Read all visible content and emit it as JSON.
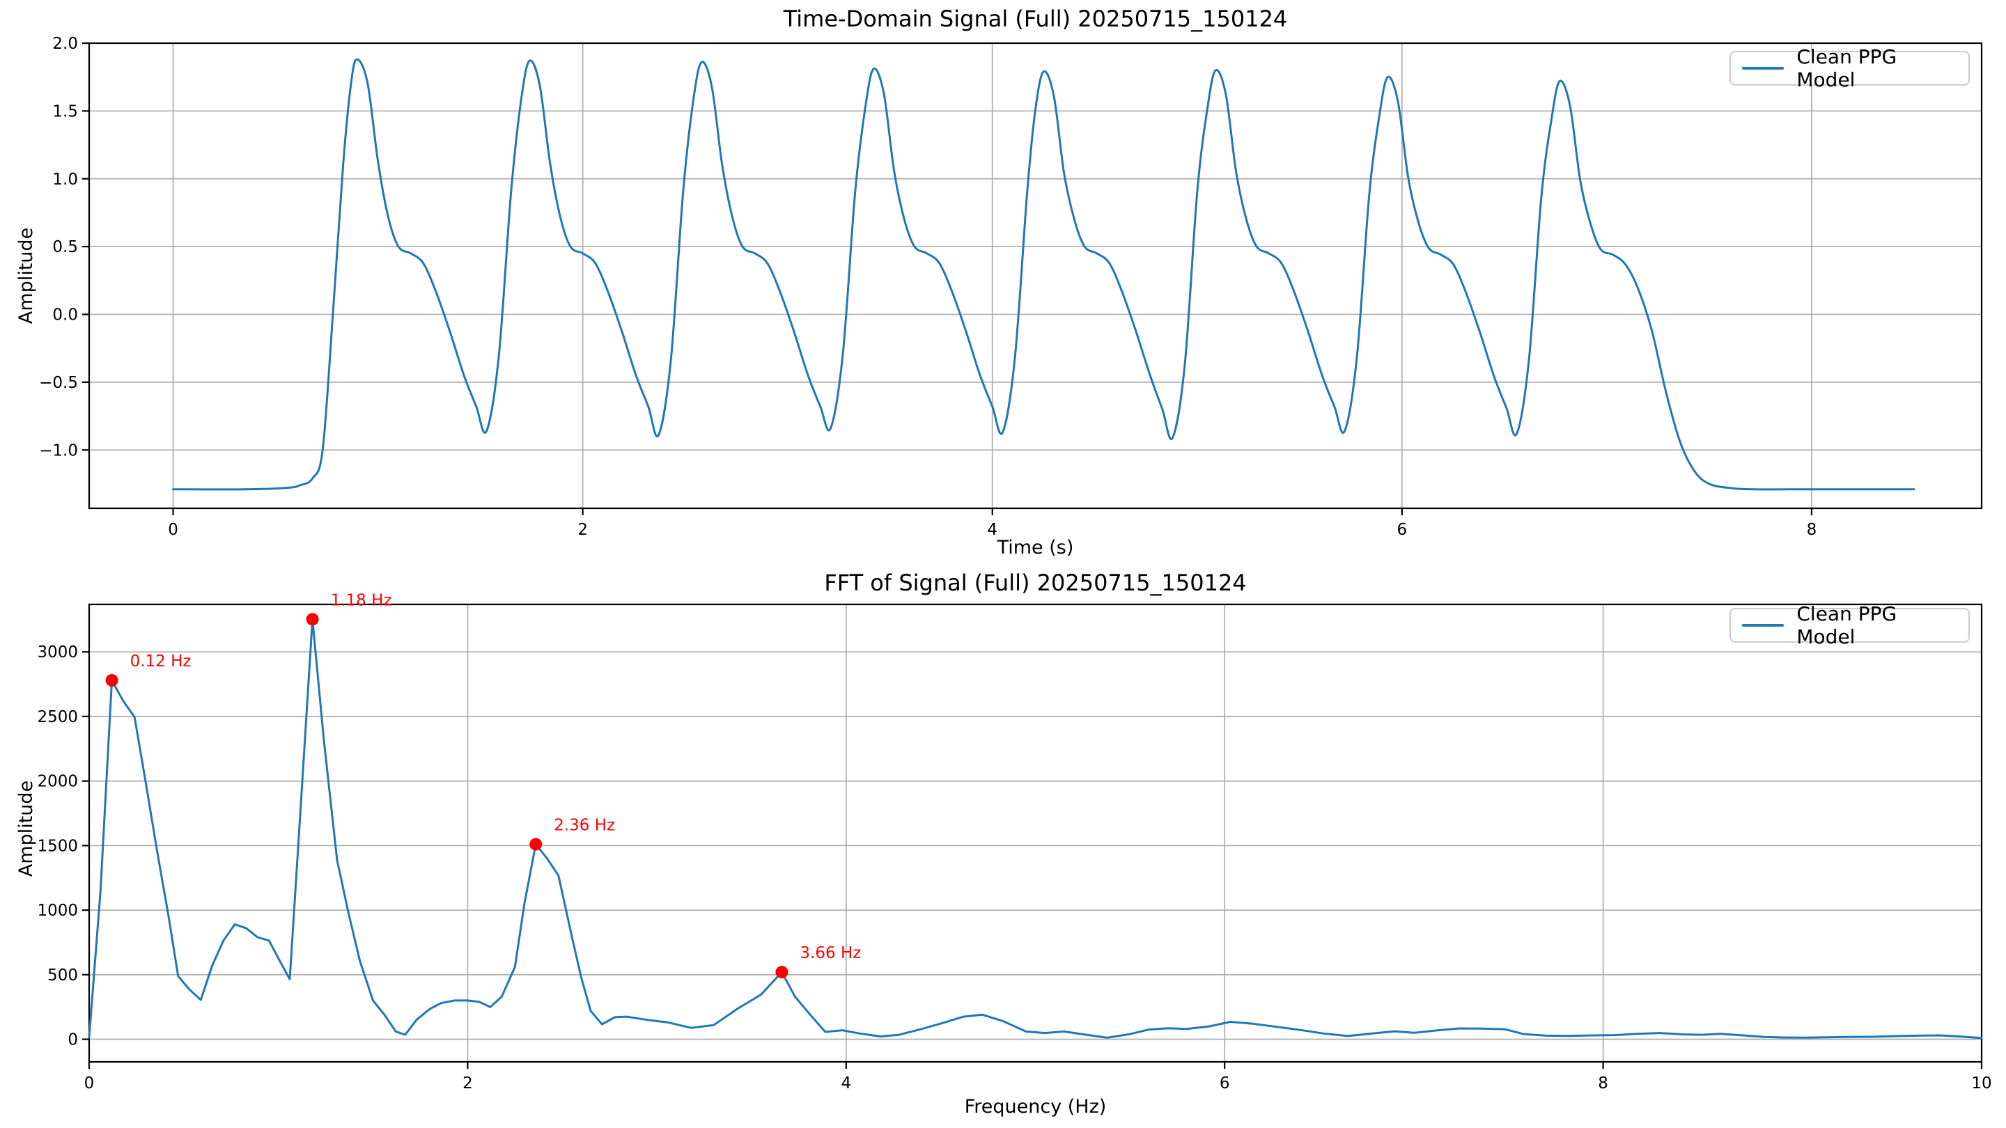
{
  "figure": {
    "background": "#ffffff"
  },
  "colors": {
    "line": "#1f77b4",
    "grid": "#b0b0b0",
    "spine": "#000000",
    "tick_text": "#000000",
    "annotation": "#ff0000",
    "legend_border": "#cccccc"
  },
  "chart_data": [
    {
      "type": "line",
      "title": "Time-Domain Signal (Full) 20250715_150124",
      "xlabel": "Time (s)",
      "ylabel": "Amplitude",
      "legend_label": "Clean PPG Model",
      "legend_position": "upper right",
      "grid": true,
      "xlim": [
        -0.41,
        8.83
      ],
      "ylim": [
        -1.43,
        2.0
      ],
      "xtick_values": [
        0,
        2,
        4,
        6,
        8
      ],
      "xtick_labels": [
        "0",
        "2",
        "4",
        "6",
        "8"
      ],
      "ytick_values": [
        2.0,
        1.5,
        1.0,
        0.5,
        0.0,
        -0.5,
        -1.0
      ],
      "ytick_labels": [
        "2.0",
        "1.5",
        "1.0",
        "0.5",
        "0.0",
        "−0.5",
        "−1.0"
      ],
      "series": [
        {
          "name": "Clean PPG Model",
          "points": [
            [
              0.0,
              -1.29
            ],
            [
              0.35,
              -1.29
            ],
            [
              0.55,
              -1.28
            ],
            [
              0.62,
              -1.26
            ],
            [
              0.68,
              -1.21
            ],
            [
              0.73,
              -1.0
            ],
            [
              0.78,
              0.0
            ],
            [
              0.83,
              1.1
            ],
            [
              0.87,
              1.72
            ],
            [
              0.9,
              1.88
            ],
            [
              0.95,
              1.7
            ],
            [
              1.0,
              1.13
            ],
            [
              1.05,
              0.72
            ],
            [
              1.1,
              0.5
            ],
            [
              1.16,
              0.45
            ],
            [
              1.22,
              0.38
            ],
            [
              1.28,
              0.18
            ],
            [
              1.35,
              -0.12
            ],
            [
              1.42,
              -0.45
            ],
            [
              1.48,
              -0.68
            ],
            [
              1.53,
              -0.86
            ],
            [
              1.59,
              -0.31
            ],
            [
              1.65,
              0.9
            ],
            [
              1.7,
              1.59
            ],
            [
              1.74,
              1.87
            ],
            [
              1.79,
              1.69
            ],
            [
              1.84,
              1.12
            ],
            [
              1.89,
              0.72
            ],
            [
              1.94,
              0.5
            ],
            [
              2.0,
              0.45
            ],
            [
              2.06,
              0.38
            ],
            [
              2.12,
              0.18
            ],
            [
              2.19,
              -0.12
            ],
            [
              2.26,
              -0.45
            ],
            [
              2.32,
              -0.68
            ],
            [
              2.37,
              -0.89
            ],
            [
              2.43,
              -0.34
            ],
            [
              2.49,
              0.9
            ],
            [
              2.54,
              1.58
            ],
            [
              2.58,
              1.86
            ],
            [
              2.63,
              1.68
            ],
            [
              2.68,
              1.11
            ],
            [
              2.73,
              0.72
            ],
            [
              2.78,
              0.5
            ],
            [
              2.84,
              0.45
            ],
            [
              2.9,
              0.38
            ],
            [
              2.96,
              0.18
            ],
            [
              3.03,
              -0.12
            ],
            [
              3.1,
              -0.45
            ],
            [
              3.16,
              -0.68
            ],
            [
              3.21,
              -0.84
            ],
            [
              3.27,
              -0.29
            ],
            [
              3.33,
              0.9
            ],
            [
              3.38,
              1.53
            ],
            [
              3.42,
              1.81
            ],
            [
              3.47,
              1.63
            ],
            [
              3.52,
              1.06
            ],
            [
              3.57,
              0.7
            ],
            [
              3.62,
              0.5
            ],
            [
              3.68,
              0.45
            ],
            [
              3.74,
              0.38
            ],
            [
              3.8,
              0.18
            ],
            [
              3.87,
              -0.12
            ],
            [
              3.94,
              -0.45
            ],
            [
              4.0,
              -0.68
            ],
            [
              4.05,
              -0.87
            ],
            [
              4.11,
              -0.32
            ],
            [
              4.17,
              0.9
            ],
            [
              4.21,
              1.51
            ],
            [
              4.25,
              1.79
            ],
            [
              4.3,
              1.61
            ],
            [
              4.35,
              1.04
            ],
            [
              4.4,
              0.7
            ],
            [
              4.45,
              0.5
            ],
            [
              4.51,
              0.45
            ],
            [
              4.57,
              0.38
            ],
            [
              4.63,
              0.18
            ],
            [
              4.7,
              -0.12
            ],
            [
              4.77,
              -0.45
            ],
            [
              4.83,
              -0.7
            ],
            [
              4.88,
              -0.91
            ],
            [
              4.94,
              -0.36
            ],
            [
              5.0,
              0.9
            ],
            [
              5.05,
              1.52
            ],
            [
              5.09,
              1.8
            ],
            [
              5.14,
              1.62
            ],
            [
              5.19,
              1.05
            ],
            [
              5.24,
              0.7
            ],
            [
              5.29,
              0.5
            ],
            [
              5.35,
              0.45
            ],
            [
              5.41,
              0.38
            ],
            [
              5.47,
              0.18
            ],
            [
              5.54,
              -0.12
            ],
            [
              5.61,
              -0.45
            ],
            [
              5.67,
              -0.68
            ],
            [
              5.72,
              -0.86
            ],
            [
              5.78,
              -0.31
            ],
            [
              5.84,
              0.88
            ],
            [
              5.89,
              1.47
            ],
            [
              5.93,
              1.75
            ],
            [
              5.98,
              1.57
            ],
            [
              6.03,
              1.01
            ],
            [
              6.08,
              0.68
            ],
            [
              6.13,
              0.49
            ],
            [
              6.19,
              0.44
            ],
            [
              6.25,
              0.37
            ],
            [
              6.31,
              0.17
            ],
            [
              6.38,
              -0.13
            ],
            [
              6.45,
              -0.46
            ],
            [
              6.51,
              -0.69
            ],
            [
              6.56,
              -0.88
            ],
            [
              6.62,
              -0.33
            ],
            [
              6.68,
              0.86
            ],
            [
              6.73,
              1.44
            ],
            [
              6.77,
              1.72
            ],
            [
              6.82,
              1.54
            ],
            [
              6.87,
              0.99
            ],
            [
              6.92,
              0.67
            ],
            [
              6.97,
              0.48
            ],
            [
              7.03,
              0.44
            ],
            [
              7.09,
              0.37
            ],
            [
              7.15,
              0.2
            ],
            [
              7.22,
              -0.12
            ],
            [
              7.29,
              -0.58
            ],
            [
              7.36,
              -0.95
            ],
            [
              7.43,
              -1.16
            ],
            [
              7.5,
              -1.25
            ],
            [
              7.6,
              -1.28
            ],
            [
              7.72,
              -1.29
            ],
            [
              8.0,
              -1.29
            ],
            [
              8.25,
              -1.29
            ],
            [
              8.5,
              -1.29
            ]
          ]
        }
      ],
      "peaks": []
    },
    {
      "type": "line",
      "title": "FFT of Signal (Full) 20250715_150124",
      "xlabel": "Frequency (Hz)",
      "ylabel": "Amplitude",
      "legend_label": "Clean PPG Model",
      "legend_position": "upper right",
      "grid": true,
      "xlim": [
        0,
        10
      ],
      "ylim": [
        -175,
        3368
      ],
      "xtick_values": [
        0,
        2,
        4,
        6,
        8,
        10
      ],
      "xtick_labels": [
        "0",
        "2",
        "4",
        "6",
        "8",
        "10"
      ],
      "ytick_values": [
        0,
        500,
        1000,
        1500,
        2000,
        2500,
        3000
      ],
      "ytick_labels": [
        "0",
        "500",
        "1000",
        "1500",
        "2000",
        "2500",
        "3000"
      ],
      "series": [
        {
          "name": "Clean PPG Model",
          "points": [
            [
              0.0,
              15
            ],
            [
              0.06,
              1150
            ],
            [
              0.12,
              2780
            ],
            [
              0.18,
              2620
            ],
            [
              0.24,
              2495
            ],
            [
              0.3,
              1980
            ],
            [
              0.36,
              1450
            ],
            [
              0.42,
              950
            ],
            [
              0.47,
              490
            ],
            [
              0.53,
              385
            ],
            [
              0.59,
              305
            ],
            [
              0.65,
              570
            ],
            [
              0.71,
              765
            ],
            [
              0.77,
              890
            ],
            [
              0.83,
              860
            ],
            [
              0.89,
              790
            ],
            [
              0.95,
              765
            ],
            [
              1.01,
              600
            ],
            [
              1.06,
              465
            ],
            [
              1.12,
              1850
            ],
            [
              1.18,
              3253
            ],
            [
              1.24,
              2320
            ],
            [
              1.31,
              1390
            ],
            [
              1.37,
              980
            ],
            [
              1.43,
              610
            ],
            [
              1.5,
              300
            ],
            [
              1.56,
              190
            ],
            [
              1.62,
              60
            ],
            [
              1.67,
              35
            ],
            [
              1.73,
              150
            ],
            [
              1.8,
              235
            ],
            [
              1.86,
              280
            ],
            [
              1.93,
              300
            ],
            [
              2.0,
              300
            ],
            [
              2.06,
              290
            ],
            [
              2.12,
              250
            ],
            [
              2.18,
              330
            ],
            [
              2.25,
              560
            ],
            [
              2.3,
              1050
            ],
            [
              2.36,
              1510
            ],
            [
              2.42,
              1400
            ],
            [
              2.48,
              1268
            ],
            [
              2.55,
              800
            ],
            [
              2.6,
              480
            ],
            [
              2.65,
              220
            ],
            [
              2.71,
              116
            ],
            [
              2.78,
              172
            ],
            [
              2.84,
              175
            ],
            [
              2.95,
              150
            ],
            [
              3.06,
              130
            ],
            [
              3.18,
              88
            ],
            [
              3.3,
              110
            ],
            [
              3.43,
              240
            ],
            [
              3.55,
              345
            ],
            [
              3.66,
              520
            ],
            [
              3.73,
              330
            ],
            [
              3.81,
              190
            ],
            [
              3.89,
              57
            ],
            [
              3.98,
              70
            ],
            [
              4.07,
              45
            ],
            [
              4.18,
              22
            ],
            [
              4.28,
              35
            ],
            [
              4.4,
              80
            ],
            [
              4.52,
              130
            ],
            [
              4.62,
              175
            ],
            [
              4.72,
              190
            ],
            [
              4.83,
              140
            ],
            [
              4.95,
              60
            ],
            [
              5.05,
              48
            ],
            [
              5.15,
              60
            ],
            [
              5.27,
              35
            ],
            [
              5.38,
              12
            ],
            [
              5.5,
              40
            ],
            [
              5.6,
              75
            ],
            [
              5.7,
              85
            ],
            [
              5.8,
              80
            ],
            [
              5.92,
              100
            ],
            [
              6.03,
              135
            ],
            [
              6.15,
              120
            ],
            [
              6.28,
              95
            ],
            [
              6.4,
              72
            ],
            [
              6.52,
              45
            ],
            [
              6.65,
              25
            ],
            [
              6.78,
              45
            ],
            [
              6.9,
              62
            ],
            [
              7.0,
              50
            ],
            [
              7.12,
              68
            ],
            [
              7.24,
              84
            ],
            [
              7.36,
              82
            ],
            [
              7.48,
              78
            ],
            [
              7.58,
              40
            ],
            [
              7.7,
              28
            ],
            [
              7.82,
              26
            ],
            [
              7.94,
              30
            ],
            [
              8.06,
              32
            ],
            [
              8.18,
              42
            ],
            [
              8.3,
              48
            ],
            [
              8.42,
              38
            ],
            [
              8.52,
              35
            ],
            [
              8.62,
              42
            ],
            [
              8.74,
              30
            ],
            [
              8.85,
              18
            ],
            [
              8.95,
              14
            ],
            [
              9.06,
              12
            ],
            [
              9.18,
              15
            ],
            [
              9.3,
              18
            ],
            [
              9.42,
              19
            ],
            [
              9.54,
              24
            ],
            [
              9.66,
              28
            ],
            [
              9.78,
              30
            ],
            [
              9.88,
              22
            ],
            [
              10.0,
              10
            ]
          ]
        }
      ],
      "peaks": [
        {
          "freq": 0.12,
          "amp": 2780,
          "label": "0.12 Hz"
        },
        {
          "freq": 1.18,
          "amp": 3253,
          "label": "1.18 Hz"
        },
        {
          "freq": 2.36,
          "amp": 1510,
          "label": "2.36 Hz"
        },
        {
          "freq": 3.66,
          "amp": 520,
          "label": "3.66 Hz"
        }
      ]
    }
  ]
}
